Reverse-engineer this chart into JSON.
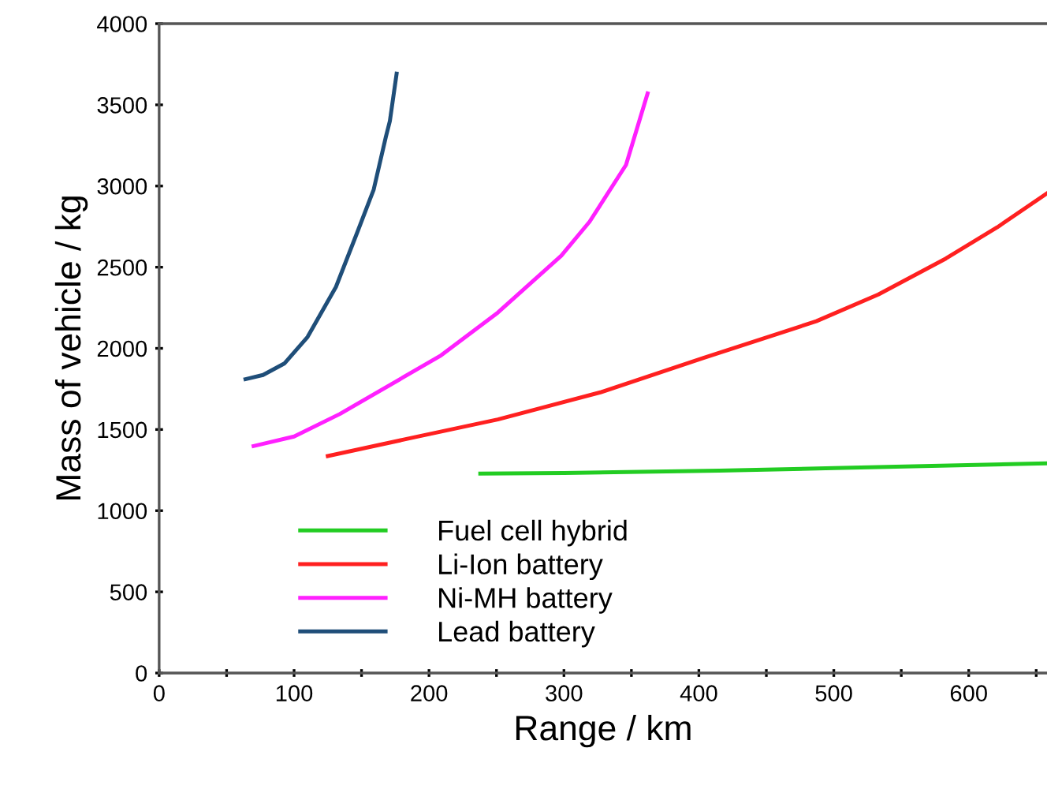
{
  "chart_data": {
    "type": "line",
    "xlabel": "Range / km",
    "ylabel": "Mass of vehicle / kg",
    "xlim": [
      0,
      658
    ],
    "ylim": [
      0,
      4000
    ],
    "xticks": [
      0,
      {
        "value": 50,
        "label": null
      },
      100,
      {
        "value": 150,
        "label": null
      },
      200,
      {
        "value": 250,
        "label": null
      },
      300,
      {
        "value": 350,
        "label": null
      },
      400,
      {
        "value": 450,
        "label": null
      },
      500,
      {
        "value": 550,
        "label": null
      },
      600,
      {
        "value": 650,
        "label": null
      }
    ],
    "yticks": [
      0,
      500,
      1000,
      1500,
      2000,
      2500,
      3000,
      3500,
      4000
    ],
    "grid": false,
    "legend": "bottom left",
    "marker": "none",
    "line_style": "solid",
    "series": [
      {
        "name": "Fuel cell hybrid",
        "color": "#22cc22",
        "x": [
          238,
          300,
          415,
          500,
          658
        ],
        "values": [
          1229,
          1232,
          1247,
          1262,
          1292
        ]
      },
      {
        "name": "Li-Ion battery",
        "color": "#ff2020",
        "x": [
          125,
          188,
          251,
          327,
          403,
          487,
          533,
          583,
          621,
          658
        ],
        "values": [
          1337,
          1450,
          1562,
          1729,
          1940,
          2167,
          2332,
          2553,
          2745,
          2955
        ]
      },
      {
        "name": "Ni-MH battery",
        "color": "#ff20ff",
        "x": [
          70,
          100,
          134,
          209,
          251,
          298,
          319,
          346,
          362
        ],
        "values": [
          1398,
          1457,
          1596,
          1957,
          2220,
          2570,
          2780,
          3130,
          3570
        ]
      },
      {
        "name": "Lead battery",
        "color": "#1f4e79",
        "x": [
          64,
          77,
          93,
          110,
          131,
          147,
          159,
          168,
          171,
          176
        ],
        "values": [
          1810,
          1836,
          1908,
          2070,
          2378,
          2718,
          2978,
          3302,
          3400,
          3692
        ]
      }
    ]
  }
}
